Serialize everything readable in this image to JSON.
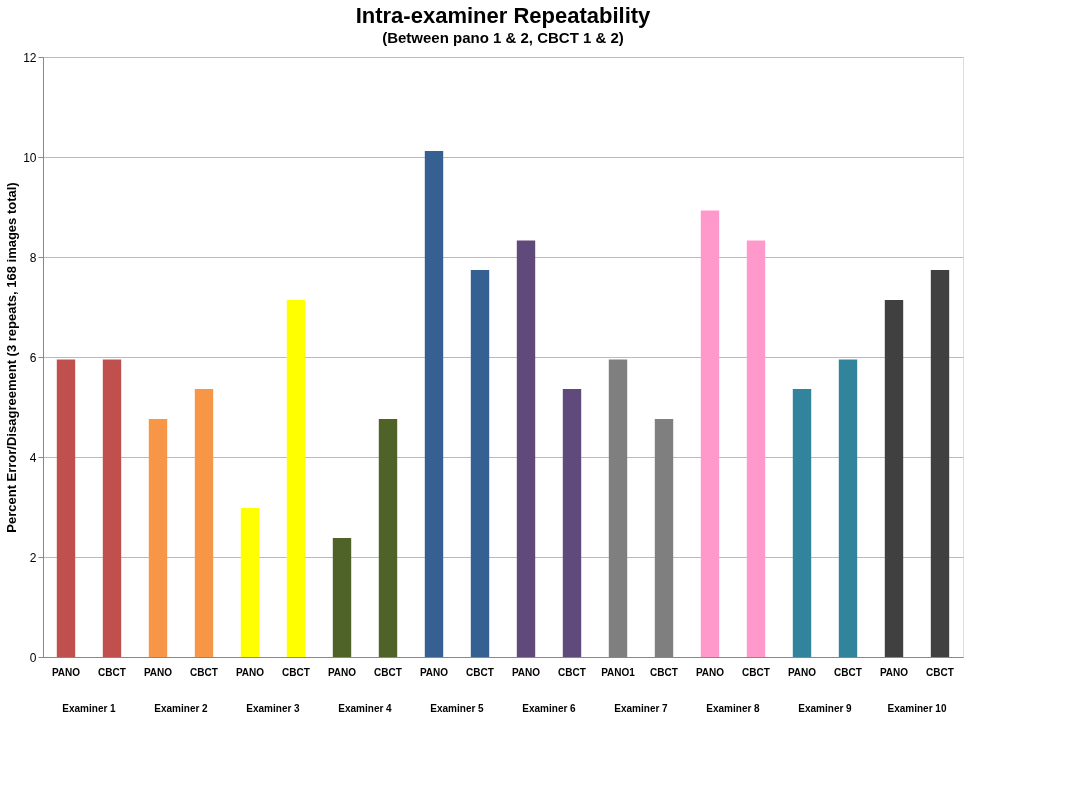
{
  "chart_data": {
    "type": "bar",
    "title": "Intra-examiner Repeatability",
    "subtitle": "(Between pano 1 & 2, CBCT 1 & 2)",
    "ylabel": "Percent Error/Disagreement (3 repeats, 168 images total)",
    "categories": [
      "PANO",
      "CBCT",
      "PANO",
      "CBCT",
      "PANO",
      "CBCT",
      "PANO",
      "CBCT",
      "PANO",
      "CBCT",
      "PANO",
      "CBCT",
      "PANO1",
      "CBCT",
      "PANO",
      "CBCT",
      "PANO",
      "CBCT",
      "PANO",
      "CBCT"
    ],
    "values": [
      5.95,
      5.95,
      4.76,
      5.36,
      2.98,
      7.14,
      2.38,
      4.76,
      10.12,
      7.74,
      8.33,
      5.36,
      5.95,
      4.76,
      8.93,
      8.33,
      5.36,
      5.95,
      7.14,
      7.74
    ],
    "colors": [
      "#c0504d",
      "#c0504d",
      "#f79646",
      "#f79646",
      "#ffff00",
      "#ffff00",
      "#4f6228",
      "#4f6228",
      "#366092",
      "#366092",
      "#604a7b",
      "#604a7b",
      "#7f7f7f",
      "#7f7f7f",
      "#ff99cc",
      "#ff99cc",
      "#31849b",
      "#31849b",
      "#404040",
      "#404040"
    ],
    "annotations": [
      "Examiner 1",
      "Examiner 2",
      "Examiner 3",
      "Examiner 4",
      "Examiner 5",
      "Examiner 6",
      "Examiner 7",
      "Examiner 8",
      "Examiner 9",
      "Examiner 10"
    ],
    "ylim": [
      0,
      12
    ],
    "yticks": [
      0,
      2,
      4,
      6,
      8,
      10,
      12
    ],
    "grid": "y"
  }
}
